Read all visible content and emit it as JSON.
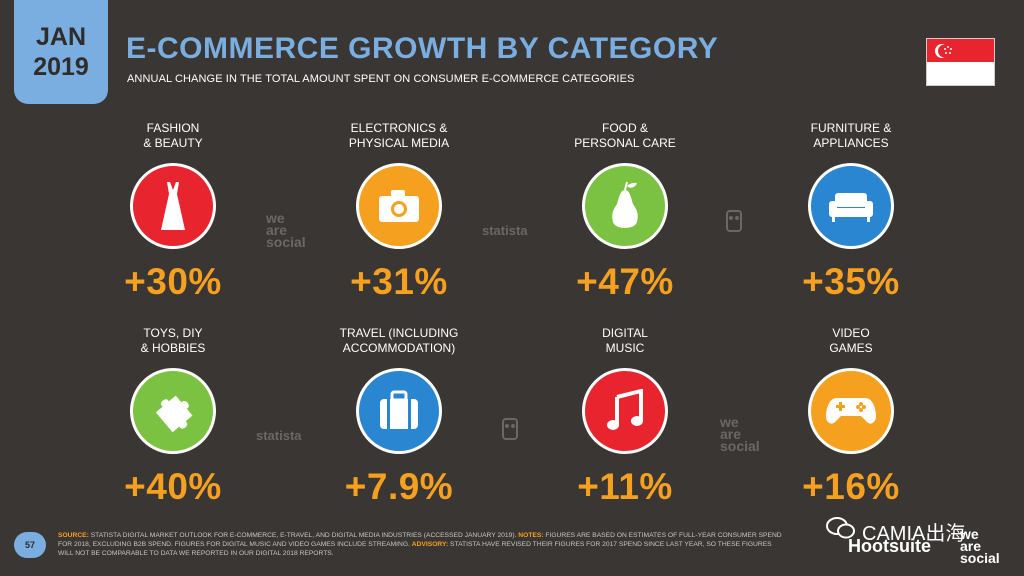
{
  "header": {
    "date_month": "JAN",
    "date_year": "2019",
    "title": "E-COMMERCE GROWTH BY CATEGORY",
    "subtitle": "ANNUAL CHANGE IN THE TOTAL AMOUNT SPENT ON CONSUMER E-COMMERCE CATEGORIES"
  },
  "flag": {
    "country_icon": "singapore-flag-icon",
    "red": "#e8242e",
    "white": "#ffffff"
  },
  "categories": [
    {
      "label": "FASHION\n& BEAUTY",
      "value": "+30%",
      "icon": "dress-icon",
      "color": "#e8242e"
    },
    {
      "label": "ELECTRONICS &\nPHYSICAL MEDIA",
      "value": "+31%",
      "icon": "camera-icon",
      "color": "#f6a020"
    },
    {
      "label": "FOOD &\nPERSONAL CARE",
      "value": "+47%",
      "icon": "pear-icon",
      "color": "#7cc242"
    },
    {
      "label": "FURNITURE &\nAPPLIANCES",
      "value": "+35%",
      "icon": "sofa-icon",
      "color": "#2a86d0"
    },
    {
      "label": "TOYS, DIY\n& HOBBIES",
      "value": "+40%",
      "icon": "puzzle-icon",
      "color": "#7cc242"
    },
    {
      "label": "TRAVEL (INCLUDING\nACCOMMODATION)",
      "value": "+7.9%",
      "icon": "suitcase-icon",
      "color": "#2a86d0"
    },
    {
      "label": "DIGITAL\nMUSIC",
      "value": "+11%",
      "icon": "music-note-icon",
      "color": "#e8242e"
    },
    {
      "label": "VIDEO\nGAMES",
      "value": "+16%",
      "icon": "gamepad-icon",
      "color": "#f6a020"
    }
  ],
  "watermarks": {
    "we_are_social": "we\nare\nsocial",
    "statista": "statista"
  },
  "footer": {
    "page_number": "57",
    "source_label": "SOURCE:",
    "source_text": "STATISTA DIGITAL MARKET OUTLOOK FOR E-COMMERCE, E-TRAVEL, AND DIGITAL MEDIA INDUSTRIES (ACCESSED JANUARY 2019).",
    "notes_label": "NOTES:",
    "notes_text": "FIGURES ARE BASED ON ESTIMATES OF FULL-YEAR CONSUMER SPEND FOR 2018, EXCLUDING B2B SPEND. FIGURES FOR DIGITAL MUSIC AND VIDEO GAMES INCLUDE STREAMING.",
    "advisory_label": "ADVISORY:",
    "advisory_text": "STATISTA HAVE REVISED THEIR FIGURES FOR 2017 SPEND SINCE LAST YEAR, SO THESE FIGURES WILL NOT BE COMPARABLE TO DATA WE REPORTED IN OUR DIGITAL 2018 REPORTS.",
    "hootsuite": "Hootsuite",
    "we_are_social_logo": "we\nare\nsocial",
    "camia": "CAMIA出海"
  }
}
